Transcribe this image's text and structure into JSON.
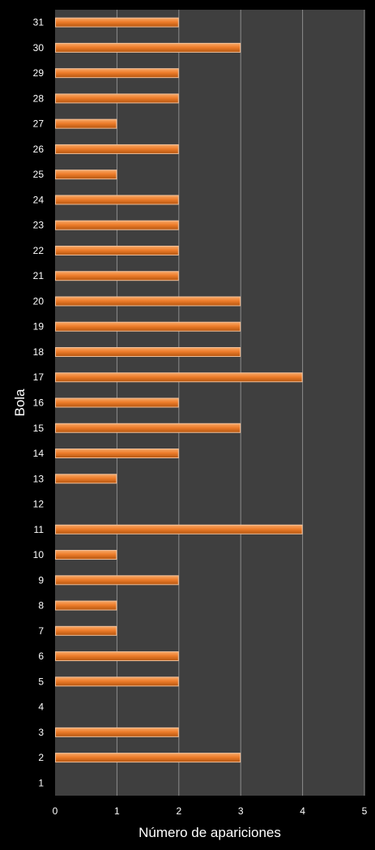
{
  "chart_data": {
    "type": "bar",
    "orientation": "horizontal",
    "categories": [
      "1",
      "2",
      "3",
      "4",
      "5",
      "6",
      "7",
      "8",
      "9",
      "10",
      "11",
      "12",
      "13",
      "14",
      "15",
      "16",
      "17",
      "18",
      "19",
      "20",
      "21",
      "22",
      "23",
      "24",
      "25",
      "26",
      "27",
      "28",
      "29",
      "30",
      "31"
    ],
    "values": [
      0,
      3,
      2,
      0,
      2,
      2,
      1,
      1,
      2,
      1,
      4,
      0,
      1,
      2,
      3,
      2,
      4,
      3,
      3,
      3,
      2,
      2,
      2,
      2,
      1,
      2,
      1,
      2,
      2,
      3,
      2
    ],
    "xlabel": "Número de apariciones",
    "ylabel": "Bola",
    "xlim": [
      0,
      5
    ],
    "x_ticks": [
      0,
      1,
      2,
      3,
      4,
      5
    ],
    "grid": "vertical",
    "legend": "none"
  },
  "colors": {
    "page_background": "#000000",
    "plot_background": "#3f3f3f",
    "gridline": "#8c8c8c",
    "bar_light": "#f7a968",
    "bar_mid": "#ee7d2b",
    "bar_dark": "#b4550f",
    "bar_outline": "#f2c09a",
    "text": "#ffffff"
  }
}
